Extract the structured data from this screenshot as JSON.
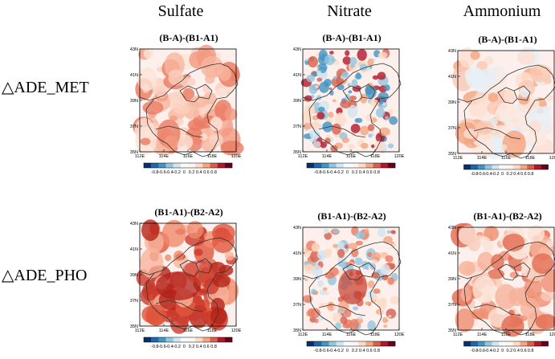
{
  "columns": [
    "Sulfate",
    "Nitrate",
    "Ammonium"
  ],
  "rows": [
    "△ADE_MET",
    "△ADE_PHO"
  ],
  "panel_titles": [
    [
      "(B-A)-(B1-A1)",
      "(B-A)-(B1-A1)",
      "(B-A)-(B1-A1)"
    ],
    [
      "(B1-A1)-(B2-A2)",
      "(B1-A1)-(B2-A2)",
      "(B1-A1)-(B2-A2)"
    ]
  ],
  "lat_ticks": [
    "43N",
    "41N",
    "39N",
    "37N",
    "35N"
  ],
  "lon_ticks": [
    "112E",
    "114E",
    "116E",
    "118E",
    "120E"
  ],
  "colorbar_ticks": [
    "-0.8",
    "-0.6",
    "-0.4",
    "-0.2",
    "0",
    "0.2",
    "0.4",
    "0.6",
    "0.8"
  ],
  "colorbar_colors": [
    "#08306b",
    "#2166ac",
    "#4393c3",
    "#92c5de",
    "#d1e5f0",
    "#f7fbff",
    "#fff5f0",
    "#fddbc7",
    "#f4a582",
    "#d6604d",
    "#b2182b",
    "#67001f"
  ]
}
